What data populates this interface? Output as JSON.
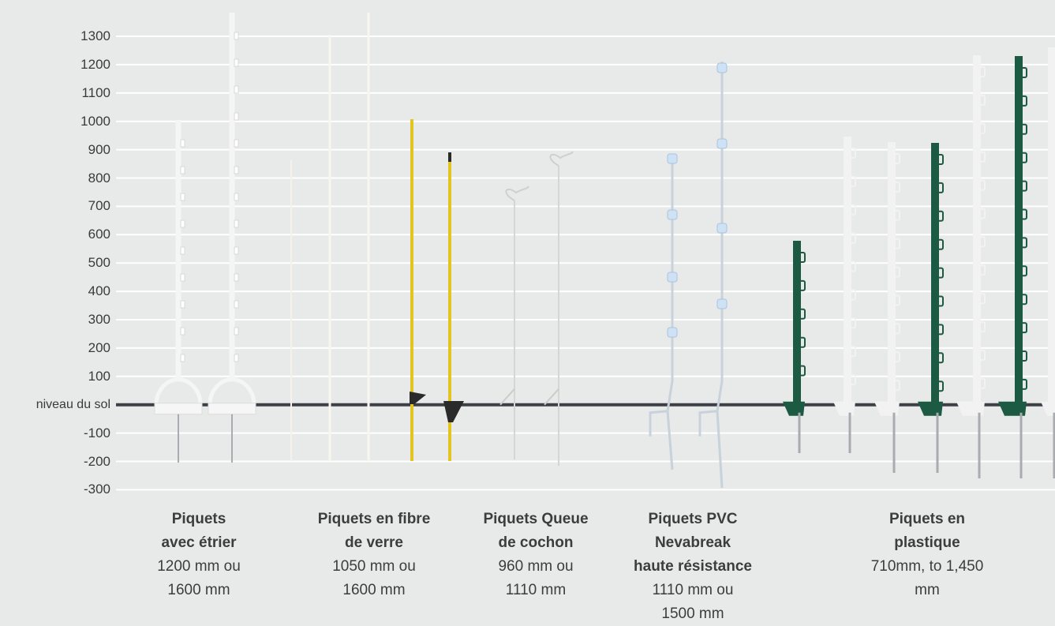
{
  "scale": {
    "ground_label": "niveau du sol",
    "ticks": [
      "1300",
      "1200",
      "1100",
      "1000",
      "900",
      "800",
      "700",
      "600",
      "500",
      "400",
      "300",
      "200",
      "100",
      "niveau du sol",
      "-100",
      "-200",
      "-300"
    ]
  },
  "colors": {
    "background": "#e8e9e9",
    "gridline": "#ffffff",
    "ground_line": "#3c4046",
    "post_white": "#f5f5f5",
    "post_fiberglass_white": "#f8f6ee",
    "post_yellow": "#e4c51f",
    "post_black": "#2a2a2a",
    "post_green": "#1c5a43",
    "insulator_blue": "#cfe2f5",
    "metal_spike": "#a8acb0"
  },
  "groups": [
    {
      "title": "Piquets\navec étrier",
      "subtitle": "1200 mm ou\n1600 mm"
    },
    {
      "title": "Piquets en fibre\nde verre",
      "subtitle": "1050 mm ou\n1600 mm"
    },
    {
      "title": "Piquets Queue\nde cochon",
      "subtitle": "960 mm ou\n1110 mm"
    },
    {
      "title": "Piquets PVC\nNevabreak\nhaute résistance",
      "subtitle": "1110 mm ou\n1500 mm"
    },
    {
      "title": "Piquets en\nplastique",
      "subtitle": "710mm, to 1,450 mm"
    }
  ]
}
